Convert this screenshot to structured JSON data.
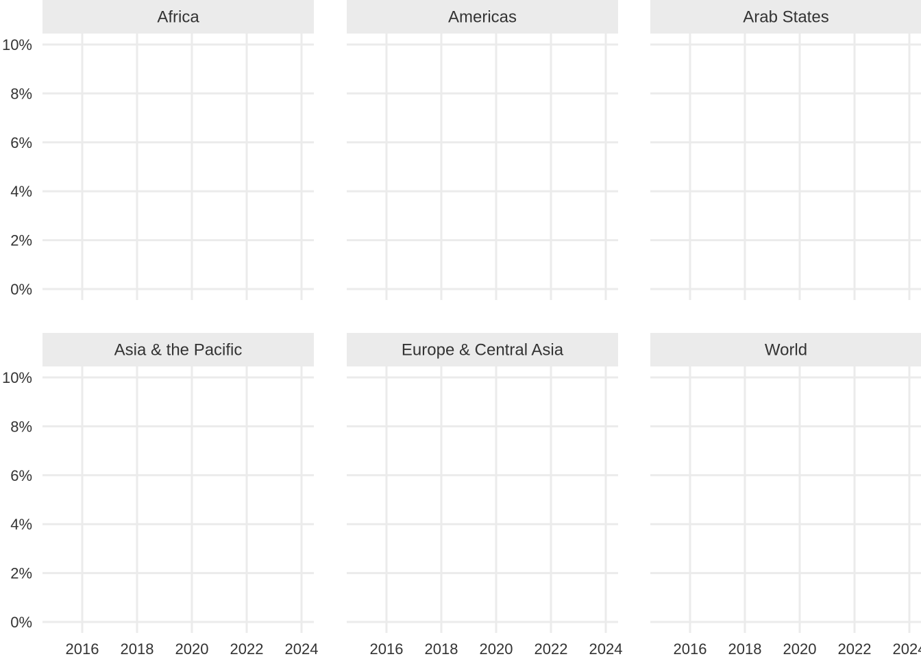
{
  "chart_data": {
    "type": "line",
    "layout": "facet-grid",
    "facet_columns": 3,
    "facet_rows": 2,
    "x_ticks": [
      "2016",
      "2018",
      "2020",
      "2022",
      "2024"
    ],
    "x_tick_values": [
      2016,
      2018,
      2020,
      2022,
      2024
    ],
    "xlim": [
      2014.55,
      2024.45
    ],
    "y_ticks": [
      "0%",
      "2%",
      "4%",
      "6%",
      "8%",
      "10%"
    ],
    "y_tick_values": [
      0,
      2,
      4,
      6,
      8,
      10
    ],
    "ylim": [
      -0.45,
      10.45
    ],
    "grid": true,
    "panel_background": "#FFFFFF",
    "gridline_color": "#EBEBEB",
    "strip_fill": "#EBEBEB",
    "text_color": "#333333",
    "facets": [
      {
        "title": "Africa",
        "series": []
      },
      {
        "title": "Americas",
        "series": []
      },
      {
        "title": "Arab States",
        "series": []
      },
      {
        "title": "Asia & the Pacific",
        "series": []
      },
      {
        "title": "Europe & Central Asia",
        "series": []
      },
      {
        "title": "World",
        "series": []
      }
    ]
  }
}
